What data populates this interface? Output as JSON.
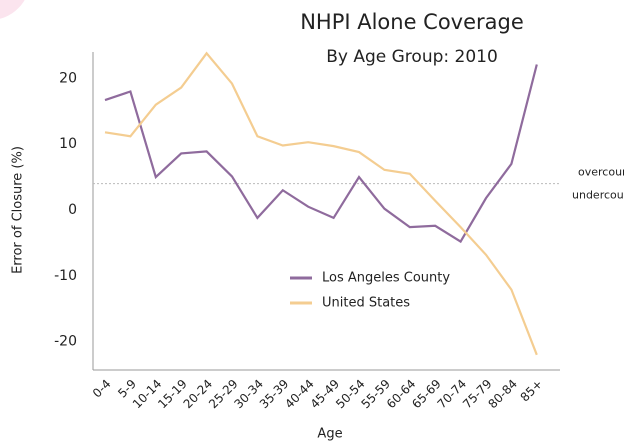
{
  "chart_data": {
    "type": "line",
    "title": "NHPI Alone Coverage",
    "subtitle": "By Age Group: 2010",
    "x_label": "Age",
    "y_label": "Error of Closure (%)",
    "categories": [
      "0-4",
      "5-9",
      "10-14",
      "15-19",
      "20-24",
      "25-29",
      "30-34",
      "35-39",
      "40-44",
      "45-49",
      "50-54",
      "55-59",
      "60-64",
      "65-69",
      "70-74",
      "75-79",
      "80-84",
      "85+"
    ],
    "series": [
      {
        "name": "Los Angeles County",
        "color": "#8f6b9d",
        "values": [
          16.7,
          18,
          5,
          8.6,
          8.9,
          5.1,
          -1.2,
          3,
          0.5,
          -1.2,
          5,
          0.2,
          -2.6,
          -2.4,
          -4.8,
          1.8,
          7,
          22.1
        ]
      },
      {
        "name": "United States",
        "color": "#f4cd91",
        "values": [
          11.8,
          11.2,
          16,
          18.6,
          23.8,
          19.2,
          11.2,
          9.8,
          10.3,
          9.7,
          8.8,
          6.1,
          5.5,
          1.4,
          -2.6,
          -6.8,
          -12.1,
          -22
        ]
      }
    ],
    "ylim": [
      -24,
      24
    ],
    "yticks": [
      20,
      10,
      0,
      -10,
      -20
    ],
    "reference_line": {
      "value": 4,
      "label_above": "overcount",
      "label_below": "undercount"
    },
    "grid": false
  }
}
